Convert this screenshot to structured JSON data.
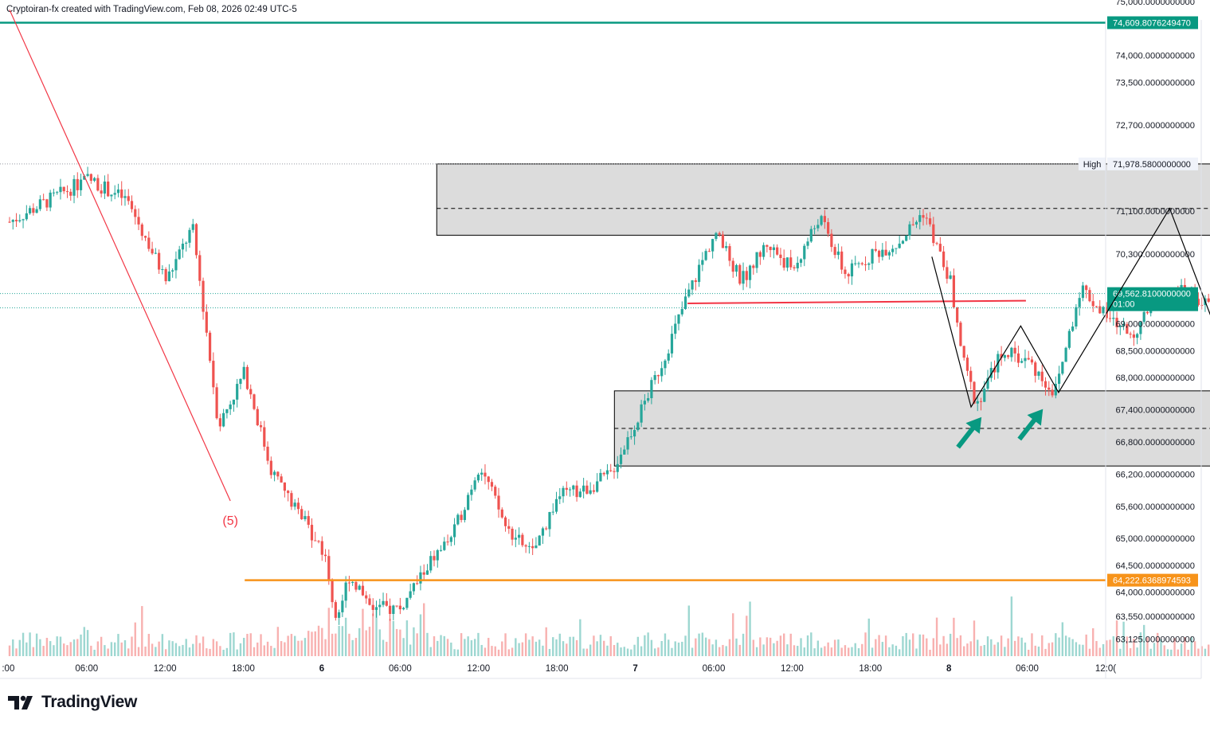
{
  "header": {
    "attribution": "Cryptoiran-fx created with TradingView.com, Feb 08, 2026 02:49 UTC-5"
  },
  "footer": {
    "brand": "TradingView"
  },
  "colors": {
    "up": "#26a69a",
    "down": "#ef5350",
    "support_line": "#089981",
    "resistance_line": "#f7931a",
    "zone_fill": "#dcdcdc",
    "trend_line": "#f23645",
    "arrow": "#089981"
  },
  "chart_data": {
    "type": "candlestick",
    "price_axis": {
      "ticks": [
        75000,
        74000,
        73500,
        72700,
        71100,
        70300,
        69000,
        68500,
        68000,
        67400,
        66800,
        66200,
        65600,
        65000,
        64500,
        64000,
        63550,
        63125
      ],
      "tick_labels": [
        "75,000.0000000000",
        "74,000.0000000000",
        "73,500.0000000000",
        "72,700.0000000000",
        "71,100.0000000000",
        "70,300.0000000000",
        "69,000.0000000000",
        "68,500.0000000000",
        "68,000.0000000000",
        "67,400.0000000000",
        "66,800.0000000000",
        "66,200.0000000000",
        "65,600.0000000000",
        "65,000.0000000000",
        "64,500.0000000000",
        "64,000.0000000000",
        "63,550.0000000000",
        "63,125.0000000000"
      ]
    },
    "time_axis": {
      "labels": [
        ":00",
        "06:00",
        "12:00",
        "18:00",
        "6",
        "06:00",
        "12:00",
        "18:00",
        "7",
        "06:00",
        "12:00",
        "18:00",
        "8",
        "06:00",
        "12:0("
      ],
      "bold": [
        false,
        false,
        false,
        false,
        true,
        false,
        false,
        false,
        true,
        false,
        false,
        false,
        true,
        false,
        false
      ]
    },
    "price_labels": {
      "upper_level": "74,609.8076249470",
      "high_tag": "High",
      "high_value": "71,978.5800000000",
      "current_price": "69,562.8100000000",
      "countdown": "01:00",
      "lower_level": "64,222.6368974593"
    },
    "levels": {
      "upper": 74609.81,
      "high": 71978.58,
      "current": 69562.81,
      "lower": 64222.64
    },
    "zones": [
      {
        "name": "supply",
        "top": 71978,
        "bottom": 70650,
        "mid": 71150,
        "t_start": 32.7,
        "t_end": 117.1
      },
      {
        "name": "demand",
        "top": 67750,
        "bottom": 66350,
        "mid": 67050,
        "t_start": 46.3,
        "t_end": 114.7
      }
    ],
    "wave_label": "(5)",
    "path": [
      {
        "t": 0,
        "p": 70900
      },
      {
        "t": 6,
        "p": 71700
      },
      {
        "t": 9,
        "p": 71300
      },
      {
        "t": 12,
        "p": 69800
      },
      {
        "t": 14,
        "p": 70800
      },
      {
        "t": 15,
        "p": 69000
      },
      {
        "t": 16,
        "p": 67100
      },
      {
        "t": 18,
        "p": 68100
      },
      {
        "t": 20,
        "p": 66300
      },
      {
        "t": 22,
        "p": 65500
      },
      {
        "t": 24,
        "p": 64800
      },
      {
        "t": 25,
        "p": 63500
      },
      {
        "t": 26,
        "p": 64300
      },
      {
        "t": 28,
        "p": 63700
      },
      {
        "t": 30,
        "p": 63700
      },
      {
        "t": 32,
        "p": 64500
      },
      {
        "t": 34,
        "p": 65100
      },
      {
        "t": 36,
        "p": 66400
      },
      {
        "t": 38,
        "p": 65200
      },
      {
        "t": 40,
        "p": 64700
      },
      {
        "t": 42,
        "p": 65800
      },
      {
        "t": 44,
        "p": 65900
      },
      {
        "t": 46,
        "p": 66200
      },
      {
        "t": 48,
        "p": 67200
      },
      {
        "t": 50,
        "p": 68300
      },
      {
        "t": 52,
        "p": 69600
      },
      {
        "t": 54,
        "p": 70700
      },
      {
        "t": 56,
        "p": 69800
      },
      {
        "t": 58,
        "p": 70500
      },
      {
        "t": 60,
        "p": 70000
      },
      {
        "t": 62,
        "p": 71000
      },
      {
        "t": 64,
        "p": 69900
      },
      {
        "t": 66,
        "p": 70300
      },
      {
        "t": 68,
        "p": 70500
      },
      {
        "t": 70,
        "p": 71100
      },
      {
        "t": 71,
        "p": 70400
      },
      {
        "t": 72,
        "p": 69800
      },
      {
        "t": 73,
        "p": 68300
      },
      {
        "t": 74,
        "p": 67500
      },
      {
        "t": 76,
        "p": 68500
      },
      {
        "t": 78,
        "p": 68300
      },
      {
        "t": 80,
        "p": 67700
      },
      {
        "t": 82,
        "p": 69700
      },
      {
        "t": 84,
        "p": 69100
      },
      {
        "t": 86,
        "p": 68800
      },
      {
        "t": 88,
        "p": 69500
      },
      {
        "t": 90,
        "p": 69600
      },
      {
        "t": 92,
        "p": 69300
      },
      {
        "t": 94,
        "p": 69600
      },
      {
        "t": 96,
        "p": 69000
      },
      {
        "t": 98,
        "p": 69300
      },
      {
        "t": 100,
        "p": 69350
      },
      {
        "t": 102,
        "p": 69200
      },
      {
        "t": 104,
        "p": 69300
      },
      {
        "t": 106,
        "p": 69350
      },
      {
        "t": 108,
        "p": 69300
      },
      {
        "t": 109,
        "p": 69562
      }
    ],
    "annotations": {
      "trend_line": [
        {
          "t": 0,
          "p": 74850
        },
        {
          "t": 16.9,
          "p": 65700
        }
      ],
      "neckline": [
        {
          "t": 51.9,
          "p": 69380
        },
        {
          "t": 77.8,
          "p": 69430
        }
      ],
      "projection": [
        {
          "t": 70.6,
          "p": 70250
        },
        {
          "t": 73.6,
          "p": 67450
        },
        {
          "t": 77.4,
          "p": 68960
        },
        {
          "t": 80.3,
          "p": 67720
        },
        {
          "t": 88.8,
          "p": 71150
        },
        {
          "t": 93.4,
          "p": 68220
        }
      ],
      "arrows": [
        {
          "t": 72.6,
          "p": 66700
        },
        {
          "t": 77.3,
          "p": 66850
        }
      ]
    }
  }
}
